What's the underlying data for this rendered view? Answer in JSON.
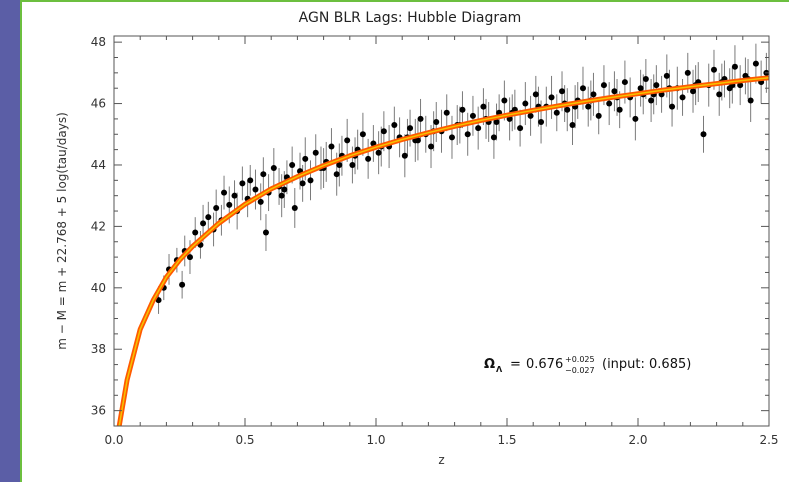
{
  "chart_data": {
    "type": "scatter",
    "title": "AGN BLR Lags: Hubble Diagram",
    "xlabel": "z",
    "ylabel": "m − M = m + 22.768 + 5 log(tau/days)",
    "xlim": [
      0.0,
      2.5
    ],
    "ylim": [
      35.5,
      48.2
    ],
    "x_ticks": [
      0.0,
      0.5,
      1.0,
      1.5,
      2.0,
      2.5
    ],
    "x_tick_labels": [
      "0.0",
      "0.5",
      "1.0",
      "1.5",
      "2.0",
      "2.5"
    ],
    "y_ticks": [
      36,
      38,
      40,
      42,
      44,
      46,
      48
    ],
    "y_tick_labels": [
      "36",
      "38",
      "40",
      "42",
      "44",
      "46",
      "48"
    ],
    "grid": false,
    "legend": "none",
    "annotation": {
      "omega_symbol": "Ω",
      "omega_subscript": "Λ",
      "equals": "=",
      "value": "0.676",
      "err_plus": "+0.025",
      "err_minus": "−0.027",
      "input_text": "(input: 0.685)"
    },
    "colors": {
      "points": "#000000",
      "error_bars": "#7a7a7a",
      "fit_outer": "#ff5a00",
      "fit_inner": "#f5c400"
    },
    "model_curve": {
      "name": "",
      "x": [
        0.02,
        0.05,
        0.1,
        0.15,
        0.2,
        0.25,
        0.3,
        0.4,
        0.5,
        0.6,
        0.7,
        0.8,
        0.9,
        1.0,
        1.1,
        1.2,
        1.3,
        1.4,
        1.5,
        1.6,
        1.7,
        1.8,
        1.9,
        2.0,
        2.1,
        2.2,
        2.3,
        2.4,
        2.5
      ],
      "y": [
        35.0,
        37.0,
        38.65,
        39.6,
        40.35,
        40.9,
        41.35,
        42.1,
        42.72,
        43.22,
        43.62,
        43.98,
        44.3,
        44.58,
        44.83,
        45.05,
        45.26,
        45.45,
        45.62,
        45.78,
        45.93,
        46.07,
        46.2,
        46.32,
        46.44,
        46.55,
        46.65,
        46.75,
        46.84
      ]
    },
    "series": [
      {
        "x": [
          0.17,
          0.19,
          0.21,
          0.24,
          0.26,
          0.27,
          0.29,
          0.31,
          0.33,
          0.34,
          0.36,
          0.38,
          0.39,
          0.41,
          0.42,
          0.44,
          0.46,
          0.47,
          0.49,
          0.51,
          0.52,
          0.54,
          0.56,
          0.57,
          0.59,
          0.61,
          0.63,
          0.64,
          0.66,
          0.68,
          0.69,
          0.71,
          0.73,
          0.75,
          0.77,
          0.79,
          0.81,
          0.83,
          0.85,
          0.87,
          0.89,
          0.91,
          0.93,
          0.95,
          0.97,
          0.99,
          1.01,
          1.03,
          1.05,
          1.07,
          1.09,
          1.11,
          1.13,
          1.15,
          1.17,
          1.19,
          1.21,
          1.23,
          1.25,
          1.27,
          1.29,
          1.31,
          1.33,
          1.35,
          1.37,
          1.39,
          1.41,
          1.43,
          1.45,
          1.47,
          1.49,
          1.51,
          1.53,
          1.55,
          1.57,
          1.59,
          1.61,
          1.63,
          1.65,
          1.67,
          1.69,
          1.71,
          1.73,
          1.75,
          1.77,
          1.79,
          1.81,
          1.83,
          1.85,
          1.87,
          1.89,
          1.91,
          1.93,
          1.95,
          1.97,
          1.99,
          2.01,
          2.03,
          2.05,
          2.07,
          2.09,
          2.11,
          2.13,
          2.15,
          2.17,
          2.19,
          2.21,
          2.23,
          2.25,
          2.27,
          2.29,
          2.31,
          2.33,
          2.35,
          2.37,
          2.39,
          2.41,
          2.43,
          2.45,
          2.47,
          2.49,
          0.65,
          0.72,
          0.8,
          0.92,
          1.02,
          1.12,
          1.22,
          1.32,
          1.42,
          1.52,
          1.62,
          1.72,
          1.82,
          1.92,
          2.02,
          2.12,
          2.22,
          2.32,
          2.42,
          0.58,
          0.86,
          1.16,
          1.46,
          1.76,
          2.06,
          2.36
        ],
        "y": [
          39.6,
          40.0,
          40.6,
          40.9,
          40.1,
          41.2,
          41.0,
          41.8,
          41.4,
          42.1,
          42.3,
          41.9,
          42.6,
          42.2,
          43.1,
          42.7,
          43.0,
          42.5,
          43.4,
          42.9,
          43.5,
          43.2,
          42.8,
          43.7,
          43.1,
          43.9,
          43.3,
          43.0,
          43.6,
          44.0,
          42.6,
          43.8,
          44.2,
          43.5,
          44.4,
          43.9,
          44.1,
          44.6,
          43.7,
          44.3,
          44.8,
          44.0,
          44.5,
          45.0,
          44.2,
          44.7,
          44.4,
          45.1,
          44.6,
          45.3,
          44.9,
          44.3,
          45.2,
          44.8,
          45.5,
          45.0,
          44.6,
          45.4,
          45.1,
          45.7,
          44.9,
          45.3,
          45.8,
          45.0,
          45.6,
          45.2,
          45.9,
          45.4,
          44.9,
          45.7,
          46.1,
          45.5,
          45.8,
          45.2,
          46.0,
          45.6,
          46.3,
          45.4,
          45.9,
          46.2,
          45.7,
          46.4,
          45.8,
          45.3,
          46.1,
          46.5,
          45.9,
          46.3,
          45.6,
          46.6,
          46.0,
          46.4,
          45.8,
          46.7,
          46.2,
          45.5,
          46.5,
          46.8,
          46.1,
          46.6,
          46.3,
          46.9,
          45.9,
          46.5,
          46.2,
          47.0,
          46.4,
          46.7,
          45.0,
          46.6,
          47.1,
          46.3,
          46.8,
          46.5,
          47.2,
          46.6,
          46.9,
          46.1,
          47.3,
          46.7,
          47.0,
          43.2,
          43.4,
          43.9,
          44.3,
          44.6,
          44.9,
          45.1,
          45.3,
          45.5,
          45.7,
          45.9,
          46.0,
          46.1,
          46.2,
          46.3,
          46.5,
          46.6,
          46.7,
          46.8,
          41.8,
          44.0,
          44.8,
          45.4,
          45.9,
          46.3,
          46.6
        ],
        "err": [
          0.45,
          0.4,
          0.5,
          0.4,
          0.45,
          0.5,
          0.55,
          0.5,
          0.45,
          0.6,
          0.5,
          0.55,
          0.6,
          0.5,
          0.55,
          0.6,
          0.5,
          0.6,
          0.55,
          0.6,
          0.5,
          0.65,
          0.6,
          0.55,
          0.6,
          0.65,
          0.6,
          0.7,
          0.55,
          0.6,
          0.65,
          0.6,
          0.7,
          0.65,
          0.6,
          0.7,
          0.65,
          0.6,
          0.7,
          0.65,
          0.7,
          0.6,
          0.65,
          0.7,
          0.65,
          0.6,
          0.7,
          0.65,
          0.7,
          0.6,
          0.65,
          0.7,
          0.6,
          0.7,
          0.65,
          0.6,
          0.7,
          0.65,
          0.7,
          0.6,
          0.7,
          0.65,
          0.6,
          0.7,
          0.65,
          0.7,
          0.6,
          0.65,
          0.7,
          0.6,
          0.65,
          0.7,
          0.65,
          0.6,
          0.7,
          0.65,
          0.6,
          0.7,
          0.65,
          0.7,
          0.6,
          0.65,
          0.7,
          0.65,
          0.6,
          0.7,
          0.65,
          0.7,
          0.6,
          0.65,
          0.7,
          0.65,
          0.6,
          0.7,
          0.65,
          0.7,
          0.6,
          0.65,
          0.7,
          0.65,
          0.6,
          0.7,
          0.65,
          0.7,
          0.6,
          0.65,
          0.7,
          0.65,
          0.6,
          0.7,
          0.65,
          0.7,
          0.6,
          0.65,
          0.7,
          0.65,
          0.6,
          0.7,
          0.65,
          0.7,
          0.65,
          0.6,
          0.6,
          0.65,
          0.6,
          0.65,
          0.6,
          0.65,
          0.6,
          0.65,
          0.6,
          0.65,
          0.6,
          0.65,
          0.6,
          0.65,
          0.6,
          0.65,
          0.6,
          0.65,
          0.6,
          0.7,
          0.65,
          0.6,
          0.7,
          0.65,
          0.6
        ]
      }
    ]
  }
}
